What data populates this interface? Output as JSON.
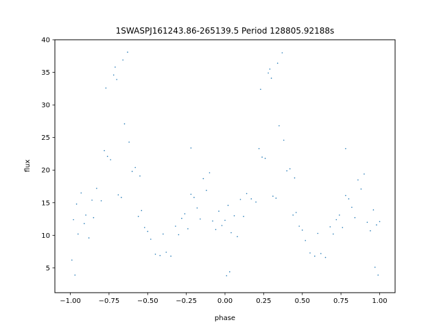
{
  "chart_data": {
    "type": "scatter",
    "title": "1SWASPJ161243.86-265139.5 Period 128805.92188s",
    "xlabel": "phase",
    "ylabel": "flux",
    "xlim": [
      -1.1,
      1.1
    ],
    "ylim": [
      1.2,
      40
    ],
    "xticks": [
      -1.0,
      -0.75,
      -0.5,
      -0.25,
      0.0,
      0.25,
      0.5,
      0.75,
      1.0
    ],
    "xtick_labels": [
      "−1.00",
      "−0.75",
      "−0.50",
      "−0.25",
      "0.00",
      "0.25",
      "0.50",
      "0.75",
      "1.00"
    ],
    "yticks": [
      5,
      10,
      15,
      20,
      25,
      30,
      35,
      40
    ],
    "ytick_labels": [
      "5",
      "10",
      "15",
      "20",
      "25",
      "30",
      "35",
      "40"
    ],
    "grid": false,
    "marker_color": "#1f77b4",
    "series": [
      {
        "name": "",
        "points": [
          [
            -0.98,
            12.4
          ],
          [
            -0.96,
            14.8
          ],
          [
            -0.95,
            10.2
          ],
          [
            -0.93,
            16.5
          ],
          [
            -0.91,
            11.8
          ],
          [
            -0.9,
            13.1
          ],
          [
            -0.88,
            9.6
          ],
          [
            -0.86,
            15.4
          ],
          [
            -0.85,
            12.7
          ],
          [
            -0.83,
            17.2
          ],
          [
            -0.8,
            15.3
          ],
          [
            -0.78,
            23.0
          ],
          [
            -0.76,
            22.1
          ],
          [
            -0.74,
            21.6
          ],
          [
            -0.72,
            34.6
          ],
          [
            -0.71,
            35.8
          ],
          [
            -0.7,
            33.9
          ],
          [
            -0.69,
            16.2
          ],
          [
            -0.67,
            15.8
          ],
          [
            -0.65,
            27.1
          ],
          [
            -0.62,
            24.3
          ],
          [
            -0.6,
            19.8
          ],
          [
            -0.58,
            20.4
          ],
          [
            -0.56,
            12.9
          ],
          [
            -0.54,
            13.8
          ],
          [
            -0.52,
            11.2
          ],
          [
            -0.5,
            10.6
          ],
          [
            -0.48,
            9.4
          ],
          [
            -0.45,
            7.1
          ],
          [
            -0.42,
            6.9
          ],
          [
            -0.4,
            10.2
          ],
          [
            -0.38,
            7.4
          ],
          [
            -0.35,
            6.8
          ],
          [
            -0.32,
            11.4
          ],
          [
            -0.3,
            10.1
          ],
          [
            -0.28,
            12.6
          ],
          [
            -0.26,
            13.3
          ],
          [
            -0.24,
            11.0
          ],
          [
            -0.22,
            16.3
          ],
          [
            -0.2,
            15.8
          ],
          [
            -0.18,
            14.2
          ],
          [
            -0.16,
            12.5
          ],
          [
            -0.14,
            18.7
          ],
          [
            -0.12,
            16.9
          ],
          [
            -0.1,
            19.6
          ],
          [
            -0.08,
            12.2
          ],
          [
            -0.06,
            10.9
          ],
          [
            -0.04,
            13.7
          ],
          [
            -0.02,
            11.5
          ],
          [
            0.0,
            12.3
          ],
          [
            0.02,
            14.6
          ],
          [
            0.04,
            10.4
          ],
          [
            0.06,
            13.0
          ],
          [
            0.08,
            9.8
          ],
          [
            0.1,
            15.5
          ],
          [
            0.12,
            12.9
          ],
          [
            0.14,
            16.4
          ],
          [
            0.17,
            15.6
          ],
          [
            0.2,
            15.1
          ],
          [
            0.22,
            23.3
          ],
          [
            0.24,
            22.0
          ],
          [
            0.26,
            21.8
          ],
          [
            0.28,
            34.9
          ],
          [
            0.29,
            35.5
          ],
          [
            0.3,
            34.1
          ],
          [
            0.31,
            16.0
          ],
          [
            0.33,
            15.7
          ],
          [
            0.35,
            26.8
          ],
          [
            0.38,
            24.6
          ],
          [
            0.4,
            19.9
          ],
          [
            0.42,
            20.2
          ],
          [
            0.44,
            13.1
          ],
          [
            0.46,
            13.5
          ],
          [
            0.48,
            11.4
          ],
          [
            0.5,
            10.8
          ],
          [
            0.52,
            9.2
          ],
          [
            0.55,
            7.3
          ],
          [
            0.58,
            6.8
          ],
          [
            0.6,
            10.3
          ],
          [
            0.62,
            7.2
          ],
          [
            0.65,
            6.6
          ],
          [
            0.68,
            11.3
          ],
          [
            0.7,
            10.2
          ],
          [
            0.72,
            12.4
          ],
          [
            0.74,
            13.1
          ],
          [
            0.76,
            11.2
          ],
          [
            0.78,
            16.1
          ],
          [
            0.8,
            15.6
          ],
          [
            0.82,
            14.3
          ],
          [
            0.84,
            12.7
          ],
          [
            0.86,
            18.5
          ],
          [
            0.88,
            17.1
          ],
          [
            0.9,
            19.4
          ],
          [
            0.92,
            12.0
          ],
          [
            0.94,
            10.7
          ],
          [
            0.96,
            13.9
          ],
          [
            0.98,
            11.6
          ],
          [
            1.0,
            12.1
          ],
          [
            -0.99,
            6.2
          ],
          [
            -0.97,
            3.9
          ],
          [
            0.01,
            3.8
          ],
          [
            0.03,
            4.4
          ],
          [
            0.99,
            3.9
          ],
          [
            0.97,
            5.1
          ],
          [
            -0.22,
            23.4
          ],
          [
            0.78,
            23.3
          ],
          [
            -0.55,
            19.1
          ],
          [
            0.45,
            18.8
          ],
          [
            -0.63,
            38.1
          ],
          [
            0.37,
            38.0
          ],
          [
            -0.77,
            32.6
          ],
          [
            0.23,
            32.4
          ],
          [
            -0.66,
            36.9
          ],
          [
            0.34,
            36.4
          ]
        ]
      }
    ]
  }
}
